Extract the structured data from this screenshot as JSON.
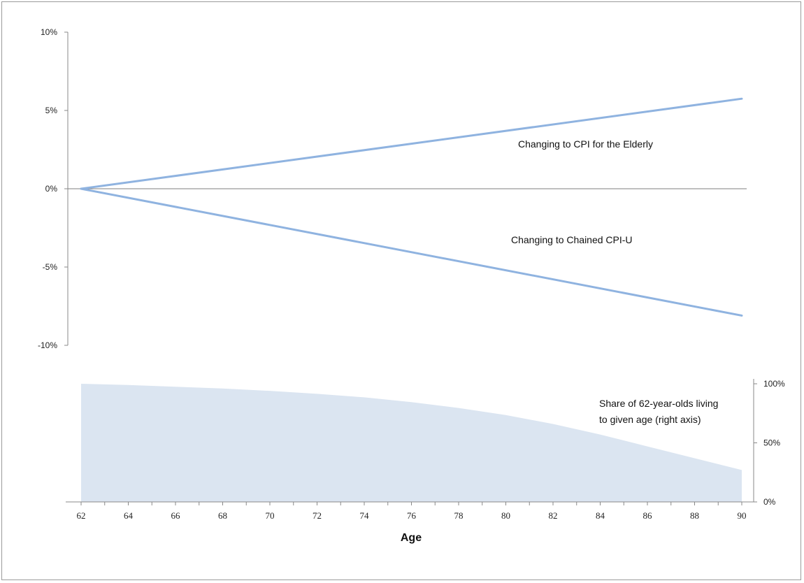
{
  "chart_data": [
    {
      "type": "line",
      "title": "",
      "xlabel": "",
      "ylabel": "",
      "x": [
        62,
        90
      ],
      "xlim": [
        62,
        90
      ],
      "ylim": [
        -0.1,
        0.1
      ],
      "yticks": [
        {
          "value": 0.1,
          "label": "10%"
        },
        {
          "value": 0.05,
          "label": "5%"
        },
        {
          "value": 0.0,
          "label": "0%"
        },
        {
          "value": -0.05,
          "label": "-5%"
        },
        {
          "value": -0.1,
          "label": "-10%"
        }
      ],
      "series": [
        {
          "name": "Changing to CPI for the Elderly",
          "x": [
            62,
            90
          ],
          "values": [
            0.0,
            0.0575
          ]
        },
        {
          "name": "Changing to Chained CPI-U",
          "x": [
            62,
            90
          ],
          "values": [
            0.0,
            -0.081
          ]
        }
      ],
      "annotations": [
        "Changing to CPI for the Elderly",
        "Changing to Chained CPI-U"
      ],
      "series_color": "#8fb3e0",
      "zero_line": true,
      "grid": false,
      "legend": "none"
    },
    {
      "type": "area",
      "title": "",
      "xlabel": "Age",
      "ylabel": "",
      "y_axis_side": "right",
      "x": [
        62,
        64,
        66,
        68,
        70,
        72,
        74,
        76,
        78,
        80,
        82,
        84,
        86,
        88,
        90
      ],
      "xticks": [
        "62",
        "64",
        "66",
        "68",
        "70",
        "72",
        "74",
        "76",
        "78",
        "80",
        "82",
        "84",
        "86",
        "88",
        "90"
      ],
      "ylim": [
        0,
        1.0
      ],
      "yticks": [
        {
          "value": 1.0,
          "label": "100%"
        },
        {
          "value": 0.5,
          "label": "50%"
        },
        {
          "value": 0.0,
          "label": "0%"
        }
      ],
      "series": [
        {
          "name": "Share of 62-year-olds living to given age (right axis)",
          "values": [
            1.0,
            0.99,
            0.975,
            0.96,
            0.94,
            0.915,
            0.885,
            0.845,
            0.795,
            0.735,
            0.66,
            0.57,
            0.47,
            0.37,
            0.27
          ]
        }
      ],
      "annotation_lines": [
        "Share of 62-year-olds living",
        "to given age (right axis)"
      ],
      "fill_color": "#dbe5f1",
      "grid": false,
      "legend": "none"
    }
  ]
}
